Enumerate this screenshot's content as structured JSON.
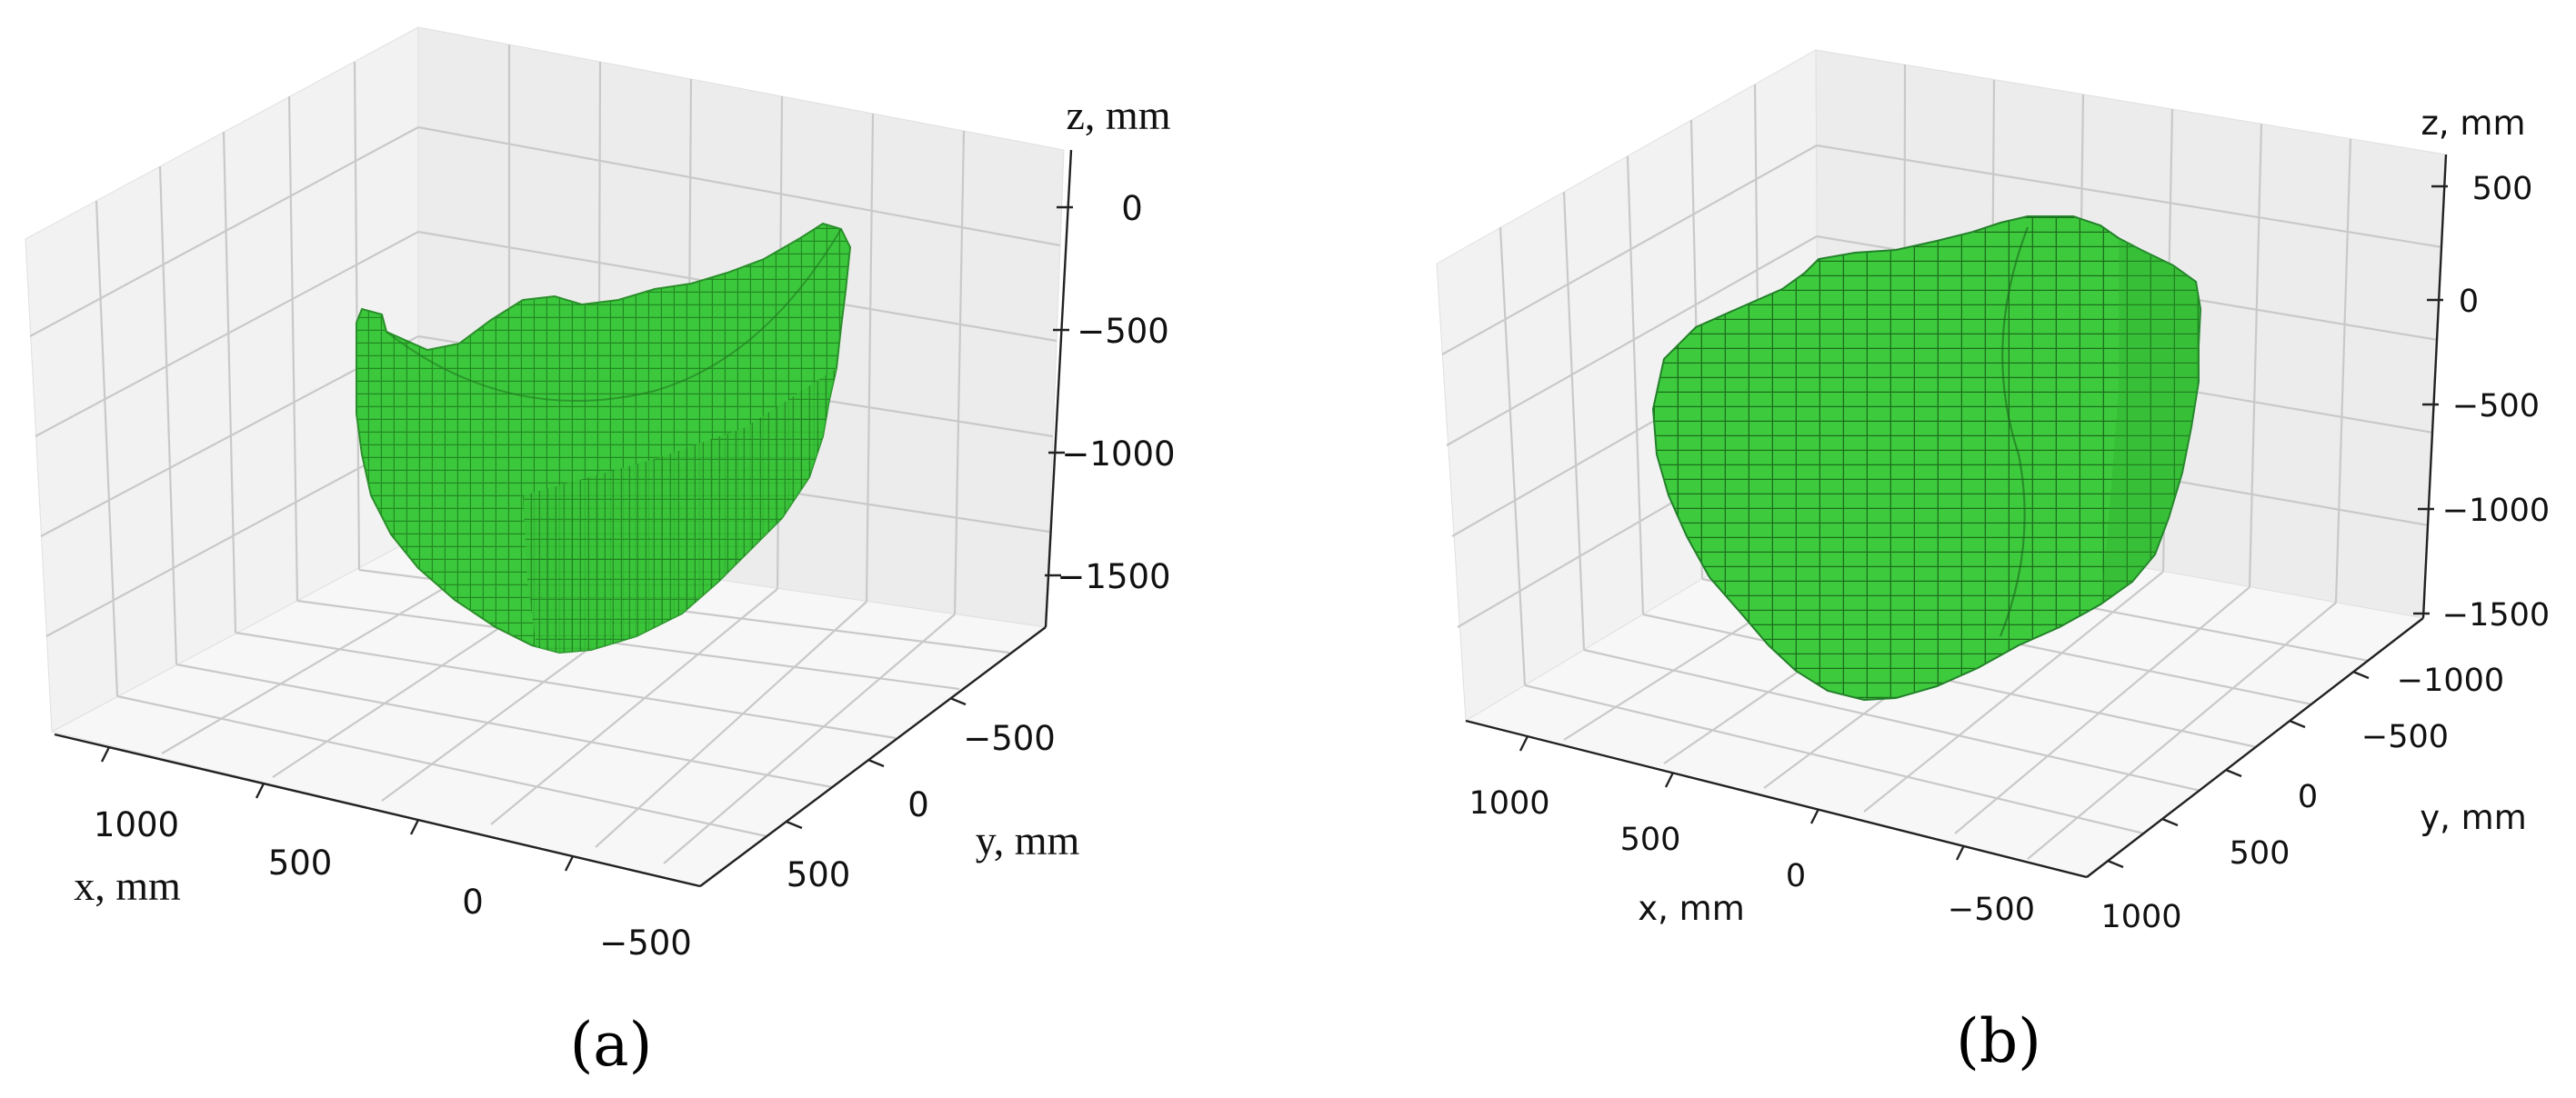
{
  "colors": {
    "voxel": "#3cc83c",
    "voxel_edge": "#1f6a1f",
    "grid": "#c9c9c9",
    "pane_light": "#f3f3f3",
    "pane_mid": "#ebebeb"
  },
  "chart_data": [
    {
      "type": "scatter",
      "label": "(a)",
      "representation": "3D voxel volume",
      "xlabel": "x, mm",
      "ylabel": "y, mm",
      "zlabel": "z, mm",
      "x_ticks": [
        "1000",
        "500",
        "0",
        "−500"
      ],
      "y_ticks": [
        "−500",
        "0",
        "500"
      ],
      "z_ticks": [
        "0",
        "−500",
        "−1000",
        "−1500"
      ],
      "grid": true
    },
    {
      "type": "scatter",
      "label": "(b)",
      "representation": "3D voxel volume",
      "xlabel": "x, mm",
      "ylabel": "y, mm",
      "zlabel": "z, mm",
      "x_ticks": [
        "1000",
        "500",
        "0",
        "−500"
      ],
      "y_ticks": [
        "−1000",
        "−500",
        "0",
        "500",
        "1000"
      ],
      "z_ticks": [
        "500",
        "0",
        "−500",
        "−1000",
        "−1500"
      ],
      "grid": true
    }
  ]
}
